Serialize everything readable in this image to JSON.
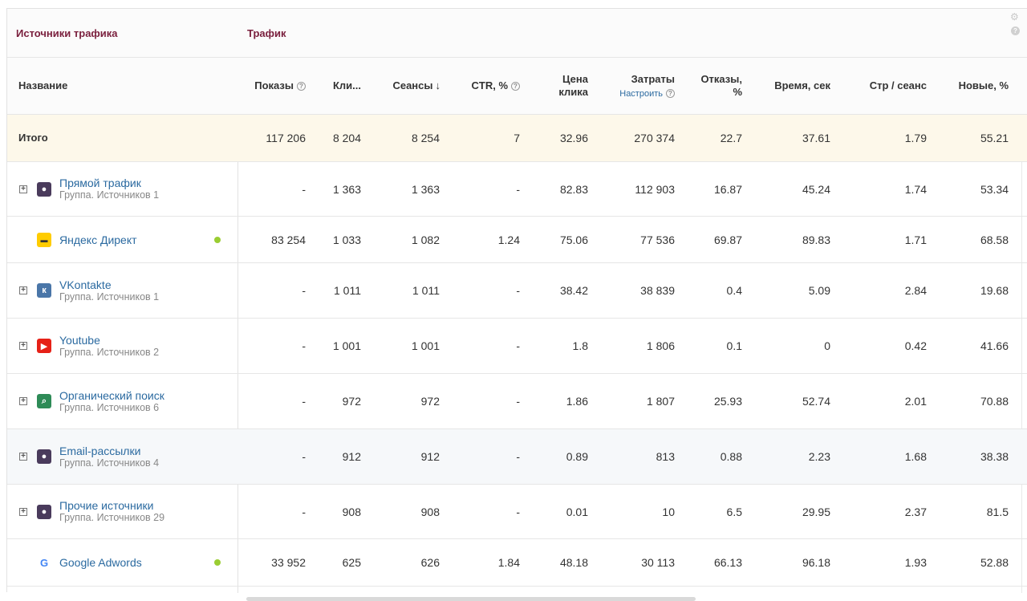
{
  "groups": {
    "left_title": "Источники трафика",
    "right_title": "Трафик"
  },
  "columns": {
    "name": "Название",
    "shows": "Показы",
    "clicks": "Кли...",
    "sessions": "Сеансы",
    "sessions_sort": "↓",
    "ctr": "CTR, %",
    "cpc_line1": "Цена",
    "cpc_line2": "клика",
    "costs": "Затраты",
    "costs_config": "Настроить",
    "bounces_line1": "Отказы,",
    "bounces_line2": "%",
    "time": "Время, сек",
    "pages": "Стр / сеанс",
    "new": "Новые, %",
    "help_glyph": "?"
  },
  "total": {
    "name": "Итого",
    "shows": "117 206",
    "clicks": "8 204",
    "sessions": "8 254",
    "ctr": "7",
    "cpc": "32.96",
    "costs": "270 374",
    "bounces": "22.7",
    "time": "37.61",
    "pages": "1.79",
    "new": "55.21"
  },
  "rows": [
    {
      "name": "Прямой трафик",
      "sub": "Группа. Источников 1",
      "icon": "user-circle-icon",
      "icon_color": "#4a3b5c",
      "expandable": true,
      "shows": "-",
      "clicks": "1 363",
      "sessions": "1 363",
      "ctr": "-",
      "cpc": "82.83",
      "costs": "112 903",
      "bounces": "16.87",
      "time": "45.24",
      "pages": "1.74",
      "new": "53.34"
    },
    {
      "name": "Яндекс Директ",
      "sub": "",
      "icon": "yandex-direct-icon",
      "icon_color": "#ffcc00",
      "expandable": false,
      "status_dot": true,
      "shows": "83 254",
      "clicks": "1 033",
      "sessions": "1 082",
      "ctr": "1.24",
      "cpc": "75.06",
      "costs": "77 536",
      "bounces": "69.87",
      "time": "89.83",
      "pages": "1.71",
      "new": "68.58"
    },
    {
      "name": "VKontakte",
      "sub": "Группа. Источников 1",
      "icon": "vk-icon",
      "icon_color": "#4a76a8",
      "expandable": true,
      "shows": "-",
      "clicks": "1 011",
      "sessions": "1 011",
      "ctr": "-",
      "cpc": "38.42",
      "costs": "38 839",
      "bounces": "0.4",
      "time": "5.09",
      "pages": "2.84",
      "new": "19.68"
    },
    {
      "name": "Youtube",
      "sub": "Группа. Источников 2",
      "icon": "youtube-icon",
      "icon_color": "#e62117",
      "expandable": true,
      "shows": "-",
      "clicks": "1 001",
      "sessions": "1 001",
      "ctr": "-",
      "cpc": "1.8",
      "costs": "1 806",
      "bounces": "0.1",
      "time": "0",
      "pages": "0.42",
      "new": "41.66"
    },
    {
      "name": "Органический поиск",
      "sub": "Группа. Источников 6",
      "icon": "search-icon",
      "icon_color": "#2e8b57",
      "expandable": true,
      "shows": "-",
      "clicks": "972",
      "sessions": "972",
      "ctr": "-",
      "cpc": "1.86",
      "costs": "1 807",
      "bounces": "25.93",
      "time": "52.74",
      "pages": "2.01",
      "new": "70.88"
    },
    {
      "name": "Email-рассылки",
      "sub": "Группа. Источников 4",
      "icon": "user-circle-icon",
      "icon_color": "#4a3b5c",
      "expandable": true,
      "highlight": true,
      "shows": "-",
      "clicks": "912",
      "sessions": "912",
      "ctr": "-",
      "cpc": "0.89",
      "costs": "813",
      "bounces": "0.88",
      "time": "2.23",
      "pages": "1.68",
      "new": "38.38"
    },
    {
      "name": "Прочие источники",
      "sub": "Группа. Источников 29",
      "icon": "user-circle-icon",
      "icon_color": "#4a3b5c",
      "expandable": true,
      "shows": "-",
      "clicks": "908",
      "sessions": "908",
      "ctr": "-",
      "cpc": "0.01",
      "costs": "10",
      "bounces": "6.5",
      "time": "29.95",
      "pages": "2.37",
      "new": "81.5"
    },
    {
      "name": "Google Adwords",
      "sub": "",
      "icon": "google-icon",
      "icon_color": "#ffffff",
      "expandable": false,
      "status_dot": true,
      "shows": "33 952",
      "clicks": "625",
      "sessions": "626",
      "ctr": "1.84",
      "cpc": "48.18",
      "costs": "30 113",
      "bounces": "66.13",
      "time": "96.18",
      "pages": "1.93",
      "new": "52.88"
    }
  ]
}
